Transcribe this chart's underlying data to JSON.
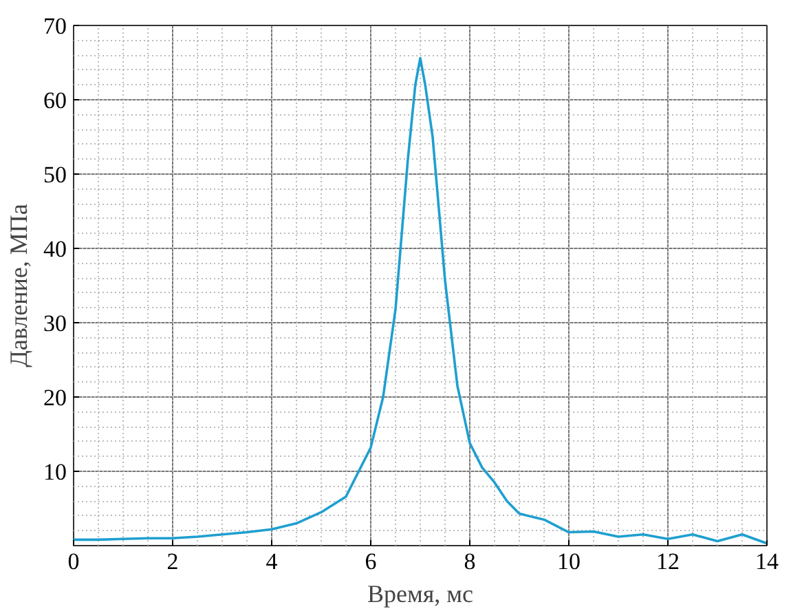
{
  "chart_data": {
    "type": "line",
    "xlabel": "Время, мс",
    "ylabel": "Давление, МПа",
    "xlim": [
      0,
      14
    ],
    "ylim": [
      0,
      70
    ],
    "xticks": [
      0,
      2,
      4,
      6,
      8,
      10,
      12,
      14
    ],
    "yticks": [
      10,
      20,
      30,
      40,
      50,
      60,
      70
    ],
    "grid": true,
    "marker": "none",
    "line_style": "solid",
    "series": [
      {
        "color": "#1f9fd0",
        "x": [
          0,
          0.5,
          1,
          1.5,
          2,
          2.5,
          3,
          3.5,
          4,
          4.5,
          5,
          5.5,
          6,
          6.25,
          6.5,
          6.75,
          6.9,
          7.0,
          7.1,
          7.25,
          7.5,
          7.75,
          8,
          8.25,
          8.5,
          8.75,
          9,
          9.5,
          10,
          10.5,
          11,
          11.5,
          12,
          12.5,
          13,
          13.5,
          14
        ],
        "values": [
          0.8,
          0.8,
          0.9,
          1.0,
          1.0,
          1.2,
          1.5,
          1.8,
          2.2,
          3.0,
          4.5,
          6.6,
          13.2,
          20,
          31.8,
          52,
          62,
          65.6,
          62,
          55,
          35.7,
          21.5,
          13.8,
          10.5,
          8.5,
          6,
          4.3,
          3.5,
          1.8,
          1.9,
          1.2,
          1.5,
          0.9,
          1.5,
          0.6,
          1.5,
          0.3
        ]
      }
    ]
  }
}
